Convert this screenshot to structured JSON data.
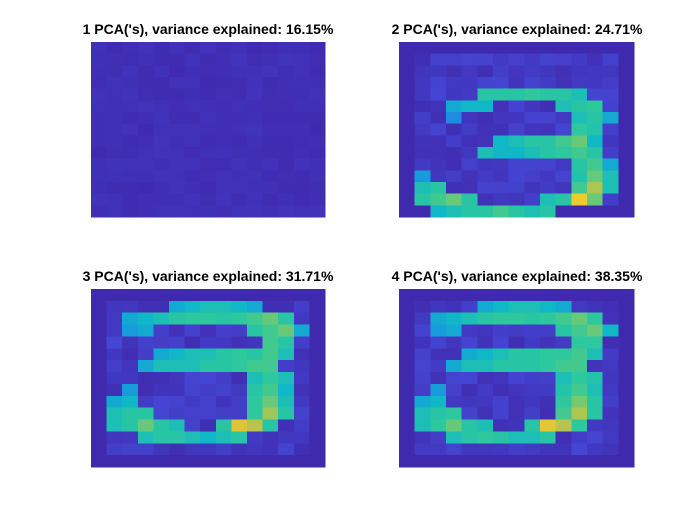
{
  "chart_data": [
    {
      "type": "heatmap",
      "title": "1 PCA('s), variance explained: 16.15%",
      "rows": 15,
      "cols": 15,
      "hot": []
    },
    {
      "type": "heatmap",
      "title": "2 PCA('s), variance explained: 24.71%",
      "rows": 15,
      "cols": 15,
      "hot": [
        [
          4,
          5,
          0.6
        ],
        [
          4,
          6,
          0.6
        ],
        [
          4,
          7,
          0.6
        ],
        [
          4,
          8,
          0.62
        ],
        [
          4,
          9,
          0.6
        ],
        [
          4,
          10,
          0.6
        ],
        [
          4,
          11,
          0.55
        ],
        [
          5,
          3,
          0.45
        ],
        [
          5,
          4,
          0.5
        ],
        [
          5,
          5,
          0.5
        ],
        [
          5,
          10,
          0.55
        ],
        [
          5,
          11,
          0.6
        ],
        [
          5,
          12,
          0.62
        ],
        [
          6,
          3,
          0.35
        ],
        [
          6,
          11,
          0.55
        ],
        [
          6,
          12,
          0.6
        ],
        [
          6,
          13,
          0.45
        ],
        [
          7,
          11,
          0.62
        ],
        [
          7,
          12,
          0.58
        ],
        [
          8,
          6,
          0.5
        ],
        [
          8,
          7,
          0.55
        ],
        [
          8,
          8,
          0.6
        ],
        [
          8,
          9,
          0.6
        ],
        [
          8,
          10,
          0.65
        ],
        [
          8,
          11,
          0.7
        ],
        [
          8,
          12,
          0.5
        ],
        [
          9,
          5,
          0.55
        ],
        [
          9,
          6,
          0.5
        ],
        [
          9,
          7,
          0.5
        ],
        [
          9,
          8,
          0.55
        ],
        [
          9,
          9,
          0.6
        ],
        [
          9,
          10,
          0.62
        ],
        [
          9,
          11,
          0.65
        ],
        [
          9,
          12,
          0.6
        ],
        [
          10,
          11,
          0.6
        ],
        [
          10,
          12,
          0.65
        ],
        [
          10,
          13,
          0.45
        ],
        [
          11,
          1,
          0.4
        ],
        [
          11,
          11,
          0.58
        ],
        [
          11,
          12,
          0.7
        ],
        [
          11,
          13,
          0.55
        ],
        [
          12,
          1,
          0.55
        ],
        [
          12,
          2,
          0.6
        ],
        [
          12,
          11,
          0.65
        ],
        [
          12,
          12,
          0.8
        ],
        [
          12,
          13,
          0.55
        ],
        [
          13,
          1,
          0.6
        ],
        [
          13,
          2,
          0.65
        ],
        [
          13,
          3,
          0.7
        ],
        [
          13,
          4,
          0.6
        ],
        [
          13,
          9,
          0.55
        ],
        [
          13,
          10,
          0.6
        ],
        [
          13,
          11,
          0.95
        ],
        [
          13,
          12,
          0.7
        ],
        [
          14,
          2,
          0.5
        ],
        [
          14,
          3,
          0.55
        ],
        [
          14,
          4,
          0.6
        ],
        [
          14,
          5,
          0.6
        ],
        [
          14,
          6,
          0.65
        ],
        [
          14,
          7,
          0.6
        ],
        [
          14,
          8,
          0.55
        ],
        [
          14,
          9,
          0.6
        ]
      ]
    },
    {
      "type": "heatmap",
      "title": "3 PCA('s), variance explained: 31.71%",
      "rows": 15,
      "cols": 15,
      "hot": [
        [
          1,
          5,
          0.45
        ],
        [
          1,
          6,
          0.5
        ],
        [
          1,
          7,
          0.55
        ],
        [
          1,
          8,
          0.55
        ],
        [
          1,
          9,
          0.5
        ],
        [
          1,
          10,
          0.45
        ],
        [
          2,
          2,
          0.45
        ],
        [
          2,
          3,
          0.5
        ],
        [
          2,
          4,
          0.55
        ],
        [
          2,
          5,
          0.6
        ],
        [
          2,
          6,
          0.62
        ],
        [
          2,
          7,
          0.62
        ],
        [
          2,
          8,
          0.6
        ],
        [
          2,
          9,
          0.62
        ],
        [
          2,
          10,
          0.65
        ],
        [
          2,
          11,
          0.7
        ],
        [
          2,
          12,
          0.6
        ],
        [
          3,
          2,
          0.4
        ],
        [
          3,
          3,
          0.45
        ],
        [
          3,
          10,
          0.6
        ],
        [
          3,
          11,
          0.65
        ],
        [
          3,
          12,
          0.7
        ],
        [
          3,
          13,
          0.45
        ],
        [
          4,
          11,
          0.65
        ],
        [
          4,
          12,
          0.6
        ],
        [
          5,
          4,
          0.45
        ],
        [
          5,
          5,
          0.5
        ],
        [
          5,
          6,
          0.55
        ],
        [
          5,
          7,
          0.55
        ],
        [
          5,
          8,
          0.6
        ],
        [
          5,
          9,
          0.62
        ],
        [
          5,
          10,
          0.6
        ],
        [
          5,
          11,
          0.65
        ],
        [
          5,
          12,
          0.55
        ],
        [
          6,
          3,
          0.45
        ],
        [
          6,
          4,
          0.55
        ],
        [
          6,
          5,
          0.55
        ],
        [
          6,
          6,
          0.55
        ],
        [
          6,
          7,
          0.6
        ],
        [
          6,
          8,
          0.6
        ],
        [
          6,
          9,
          0.62
        ],
        [
          6,
          10,
          0.65
        ],
        [
          6,
          11,
          0.65
        ],
        [
          7,
          10,
          0.55
        ],
        [
          7,
          11,
          0.62
        ],
        [
          7,
          12,
          0.55
        ],
        [
          8,
          2,
          0.4
        ],
        [
          8,
          10,
          0.6
        ],
        [
          8,
          11,
          0.65
        ],
        [
          8,
          12,
          0.5
        ],
        [
          9,
          1,
          0.45
        ],
        [
          9,
          2,
          0.5
        ],
        [
          9,
          10,
          0.62
        ],
        [
          9,
          11,
          0.7
        ],
        [
          9,
          12,
          0.55
        ],
        [
          10,
          1,
          0.55
        ],
        [
          10,
          2,
          0.6
        ],
        [
          10,
          3,
          0.6
        ],
        [
          10,
          10,
          0.62
        ],
        [
          10,
          11,
          0.78
        ],
        [
          10,
          12,
          0.6
        ],
        [
          11,
          1,
          0.55
        ],
        [
          11,
          2,
          0.6
        ],
        [
          11,
          3,
          0.7
        ],
        [
          11,
          4,
          0.6
        ],
        [
          11,
          5,
          0.55
        ],
        [
          11,
          8,
          0.6
        ],
        [
          11,
          9,
          0.9
        ],
        [
          11,
          10,
          0.82
        ],
        [
          11,
          11,
          0.6
        ],
        [
          12,
          3,
          0.55
        ],
        [
          12,
          4,
          0.6
        ],
        [
          12,
          5,
          0.6
        ],
        [
          12,
          6,
          0.55
        ],
        [
          12,
          7,
          0.5
        ],
        [
          12,
          8,
          0.55
        ],
        [
          12,
          9,
          0.6
        ]
      ]
    },
    {
      "type": "heatmap",
      "title": "4 PCA('s), variance explained: 38.35%",
      "rows": 15,
      "cols": 15,
      "hot": [
        [
          1,
          5,
          0.45
        ],
        [
          1,
          6,
          0.5
        ],
        [
          1,
          7,
          0.55
        ],
        [
          1,
          8,
          0.55
        ],
        [
          1,
          9,
          0.5
        ],
        [
          1,
          10,
          0.45
        ],
        [
          2,
          2,
          0.45
        ],
        [
          2,
          3,
          0.5
        ],
        [
          2,
          4,
          0.55
        ],
        [
          2,
          5,
          0.6
        ],
        [
          2,
          6,
          0.62
        ],
        [
          2,
          7,
          0.62
        ],
        [
          2,
          8,
          0.6
        ],
        [
          2,
          9,
          0.62
        ],
        [
          2,
          10,
          0.65
        ],
        [
          2,
          11,
          0.7
        ],
        [
          2,
          12,
          0.62
        ],
        [
          3,
          2,
          0.4
        ],
        [
          3,
          3,
          0.45
        ],
        [
          3,
          10,
          0.6
        ],
        [
          3,
          11,
          0.65
        ],
        [
          3,
          12,
          0.7
        ],
        [
          3,
          13,
          0.5
        ],
        [
          4,
          11,
          0.62
        ],
        [
          4,
          12,
          0.62
        ],
        [
          5,
          4,
          0.45
        ],
        [
          5,
          5,
          0.5
        ],
        [
          5,
          6,
          0.55
        ],
        [
          5,
          7,
          0.6
        ],
        [
          5,
          8,
          0.6
        ],
        [
          5,
          9,
          0.62
        ],
        [
          5,
          10,
          0.62
        ],
        [
          5,
          11,
          0.65
        ],
        [
          5,
          12,
          0.55
        ],
        [
          6,
          3,
          0.45
        ],
        [
          6,
          4,
          0.55
        ],
        [
          6,
          5,
          0.55
        ],
        [
          6,
          6,
          0.6
        ],
        [
          6,
          7,
          0.6
        ],
        [
          6,
          8,
          0.6
        ],
        [
          6,
          9,
          0.62
        ],
        [
          6,
          10,
          0.65
        ],
        [
          6,
          11,
          0.65
        ],
        [
          7,
          10,
          0.55
        ],
        [
          7,
          11,
          0.62
        ],
        [
          7,
          12,
          0.58
        ],
        [
          8,
          2,
          0.4
        ],
        [
          8,
          10,
          0.58
        ],
        [
          8,
          11,
          0.65
        ],
        [
          8,
          12,
          0.55
        ],
        [
          9,
          1,
          0.45
        ],
        [
          9,
          2,
          0.5
        ],
        [
          9,
          10,
          0.62
        ],
        [
          9,
          11,
          0.72
        ],
        [
          9,
          12,
          0.6
        ],
        [
          10,
          1,
          0.55
        ],
        [
          10,
          2,
          0.6
        ],
        [
          10,
          3,
          0.62
        ],
        [
          10,
          10,
          0.65
        ],
        [
          10,
          11,
          0.8
        ],
        [
          10,
          12,
          0.6
        ],
        [
          11,
          1,
          0.55
        ],
        [
          11,
          2,
          0.62
        ],
        [
          11,
          3,
          0.7
        ],
        [
          11,
          4,
          0.6
        ],
        [
          11,
          5,
          0.55
        ],
        [
          11,
          8,
          0.6
        ],
        [
          11,
          9,
          0.92
        ],
        [
          11,
          10,
          0.82
        ],
        [
          11,
          11,
          0.62
        ],
        [
          12,
          3,
          0.55
        ],
        [
          12,
          4,
          0.6
        ],
        [
          12,
          5,
          0.62
        ],
        [
          12,
          6,
          0.6
        ],
        [
          12,
          7,
          0.55
        ],
        [
          12,
          8,
          0.55
        ],
        [
          12,
          9,
          0.6
        ]
      ]
    }
  ],
  "colormap": {
    "name": "parula",
    "stops": [
      "#3e26a8",
      "#4547d5",
      "#2f6ff2",
      "#1a95dd",
      "#10b7c7",
      "#2ec99b",
      "#8ec961",
      "#dcbf3a",
      "#f9d522"
    ]
  }
}
